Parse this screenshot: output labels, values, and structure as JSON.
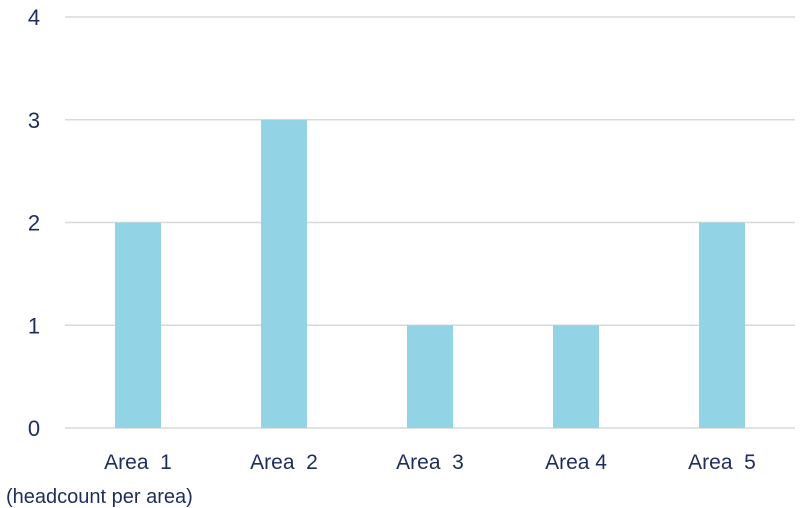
{
  "chart_data": {
    "type": "bar",
    "categories": [
      "Area  1",
      "Area  2",
      "Area  3",
      "Area 4",
      "Area  5"
    ],
    "values": [
      2,
      3,
      1,
      1,
      2
    ],
    "ylim": [
      0,
      4
    ],
    "yticks": [
      "0",
      "1",
      "2",
      "3",
      "4"
    ],
    "grid": true,
    "legend": "none",
    "footnote": "(headcount per area)",
    "bar_color": "#93d3e6"
  }
}
